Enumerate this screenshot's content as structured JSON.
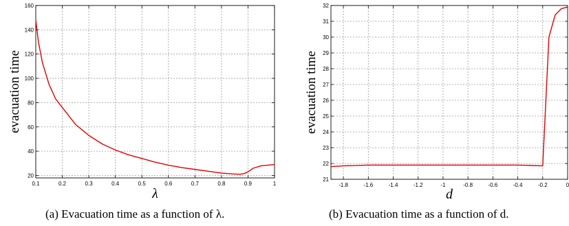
{
  "chart_data": [
    {
      "type": "line",
      "xlabel": "λ",
      "ylabel": "evacuation time",
      "xlim": [
        0.1,
        1.0
      ],
      "ylim": [
        18,
        160
      ],
      "xticks": [
        "0.1",
        "0.2",
        "0.3",
        "0.4",
        "0.5",
        "0.6",
        "0.7",
        "0.8",
        "0.9",
        "1"
      ],
      "yticks": [
        "20",
        "40",
        "60",
        "80",
        "100",
        "120",
        "140",
        "160"
      ],
      "grid": true,
      "caption": "(a)  Evacuation time as a function of λ.",
      "series": [
        {
          "color": "#e00000",
          "x": [
            0.1,
            0.11,
            0.125,
            0.15,
            0.175,
            0.2,
            0.25,
            0.3,
            0.35,
            0.4,
            0.45,
            0.5,
            0.55,
            0.6,
            0.65,
            0.7,
            0.75,
            0.8,
            0.84,
            0.87,
            0.885,
            0.9,
            0.92,
            0.95,
            1.0
          ],
          "y": [
            148,
            130,
            113,
            95,
            83,
            76,
            62,
            53,
            46,
            41,
            37,
            34,
            31,
            28.5,
            26.5,
            25,
            23.5,
            22,
            21.3,
            21,
            21.5,
            23,
            26,
            28,
            29
          ]
        }
      ]
    },
    {
      "type": "line",
      "xlabel": "d",
      "ylabel": "evacuation time",
      "xlim": [
        -1.9,
        0.0
      ],
      "ylim": [
        21,
        32
      ],
      "xticks": [
        "-1.8",
        "-1.6",
        "-1.4",
        "-1.2",
        "-1",
        "-0.8",
        "-0.6",
        "-0.4",
        "-0.2",
        "0"
      ],
      "yticks": [
        "21",
        "22",
        "23",
        "24",
        "25",
        "26",
        "27",
        "28",
        "29",
        "30",
        "31",
        "32"
      ],
      "grid": true,
      "caption": "(b)  Evacuation time as a function of d.",
      "series": [
        {
          "color": "#e00000",
          "x": [
            -1.9,
            -1.8,
            -1.6,
            -1.4,
            -1.2,
            -1.0,
            -0.8,
            -0.6,
            -0.4,
            -0.3,
            -0.2,
            -0.15,
            -0.1,
            -0.05,
            0.0
          ],
          "y": [
            21.8,
            21.85,
            21.9,
            21.9,
            21.9,
            21.9,
            21.9,
            21.9,
            21.9,
            21.88,
            21.85,
            30.0,
            31.4,
            31.8,
            31.9
          ]
        }
      ]
    }
  ]
}
